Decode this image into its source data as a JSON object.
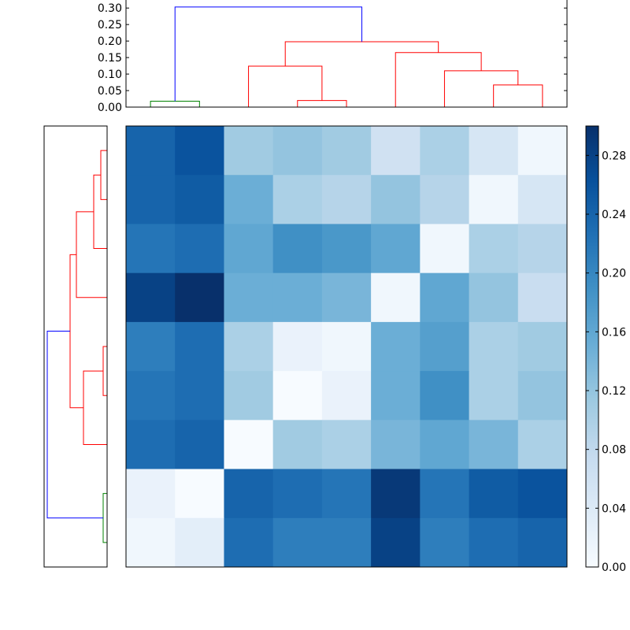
{
  "chart_data": [
    {
      "type": "dendrogram",
      "orientation": "top",
      "title": "",
      "ylim": [
        0,
        0.31
      ],
      "yticks": [
        "0.00",
        "0.05",
        "0.10",
        "0.15",
        "0.20",
        "0.25",
        "0.30"
      ],
      "ytick_values": [
        0,
        0.05,
        0.1,
        0.15,
        0.2,
        0.25,
        0.3
      ],
      "leaf_count": 9,
      "links": [
        {
          "left": 0,
          "right": 1,
          "height": 0.018,
          "color": "green"
        },
        {
          "left": 3,
          "right": 4,
          "height": 0.02,
          "color": "red"
        },
        {
          "left": 2,
          "right": 3.5,
          "height": 0.124,
          "color": "red"
        },
        {
          "left": 7,
          "right": 8,
          "height": 0.067,
          "color": "red"
        },
        {
          "left": 6,
          "right": 7.5,
          "height": 0.11,
          "color": "red"
        },
        {
          "left": 5,
          "right": 6.75,
          "height": 0.165,
          "color": "red"
        },
        {
          "left": 2.75,
          "right": 5.875,
          "height": 0.198,
          "color": "red"
        },
        {
          "left": 0.5,
          "right": 4.3125,
          "height": 0.303,
          "color": "blue"
        }
      ]
    },
    {
      "type": "dendrogram",
      "orientation": "left",
      "leaf_count": 9,
      "links": [
        {
          "left": 0,
          "right": 1,
          "height": 0.04,
          "color": "red"
        },
        {
          "left": 0.5,
          "right": 2,
          "height": 0.085,
          "color": "red"
        },
        {
          "left": 1.25,
          "right": 3,
          "height": 0.195,
          "color": "red"
        },
        {
          "left": 4,
          "right": 5,
          "height": 0.025,
          "color": "red"
        },
        {
          "left": 4.5,
          "right": 6,
          "height": 0.15,
          "color": "red"
        },
        {
          "left": 2.125,
          "right": 5.25,
          "height": 0.235,
          "color": "red"
        },
        {
          "left": 7,
          "right": 8,
          "height": 0.025,
          "color": "green"
        },
        {
          "left": 3.6875,
          "right": 7.5,
          "height": 0.38,
          "color": "blue"
        }
      ]
    },
    {
      "type": "heatmap",
      "colormap": "Blues",
      "vmin": 0,
      "vmax": 0.3,
      "rows": 9,
      "cols": 9,
      "values": [
        [
          0.24,
          0.26,
          0.11,
          0.12,
          0.11,
          0.06,
          0.1,
          0.05,
          0.01
        ],
        [
          0.24,
          0.25,
          0.15,
          0.1,
          0.09,
          0.12,
          0.09,
          0.01,
          0.05
        ],
        [
          0.22,
          0.23,
          0.16,
          0.19,
          0.18,
          0.16,
          0.01,
          0.1,
          0.09
        ],
        [
          0.28,
          0.3,
          0.15,
          0.15,
          0.14,
          0.01,
          0.16,
          0.12,
          0.07
        ],
        [
          0.21,
          0.23,
          0.1,
          0.02,
          0.01,
          0.15,
          0.17,
          0.1,
          0.11
        ],
        [
          0.22,
          0.23,
          0.11,
          0.0,
          0.02,
          0.15,
          0.19,
          0.1,
          0.12
        ],
        [
          0.23,
          0.24,
          0.0,
          0.11,
          0.1,
          0.14,
          0.16,
          0.14,
          0.1
        ],
        [
          0.02,
          0.0,
          0.24,
          0.23,
          0.22,
          0.29,
          0.22,
          0.25,
          0.26
        ],
        [
          0.01,
          0.03,
          0.23,
          0.21,
          0.21,
          0.28,
          0.21,
          0.23,
          0.24
        ]
      ]
    },
    {
      "type": "colorbar",
      "vmin": 0,
      "vmax": 0.3,
      "ticks": [
        "0.00",
        "0.04",
        "0.08",
        "0.12",
        "0.16",
        "0.20",
        "0.24",
        "0.28"
      ],
      "tick_values": [
        0,
        0.04,
        0.08,
        0.12,
        0.16,
        0.2,
        0.24,
        0.28
      ]
    }
  ],
  "colors": {
    "blue": "#0000ff",
    "red": "#ff0000",
    "green": "#008000",
    "axes": "#000000"
  }
}
